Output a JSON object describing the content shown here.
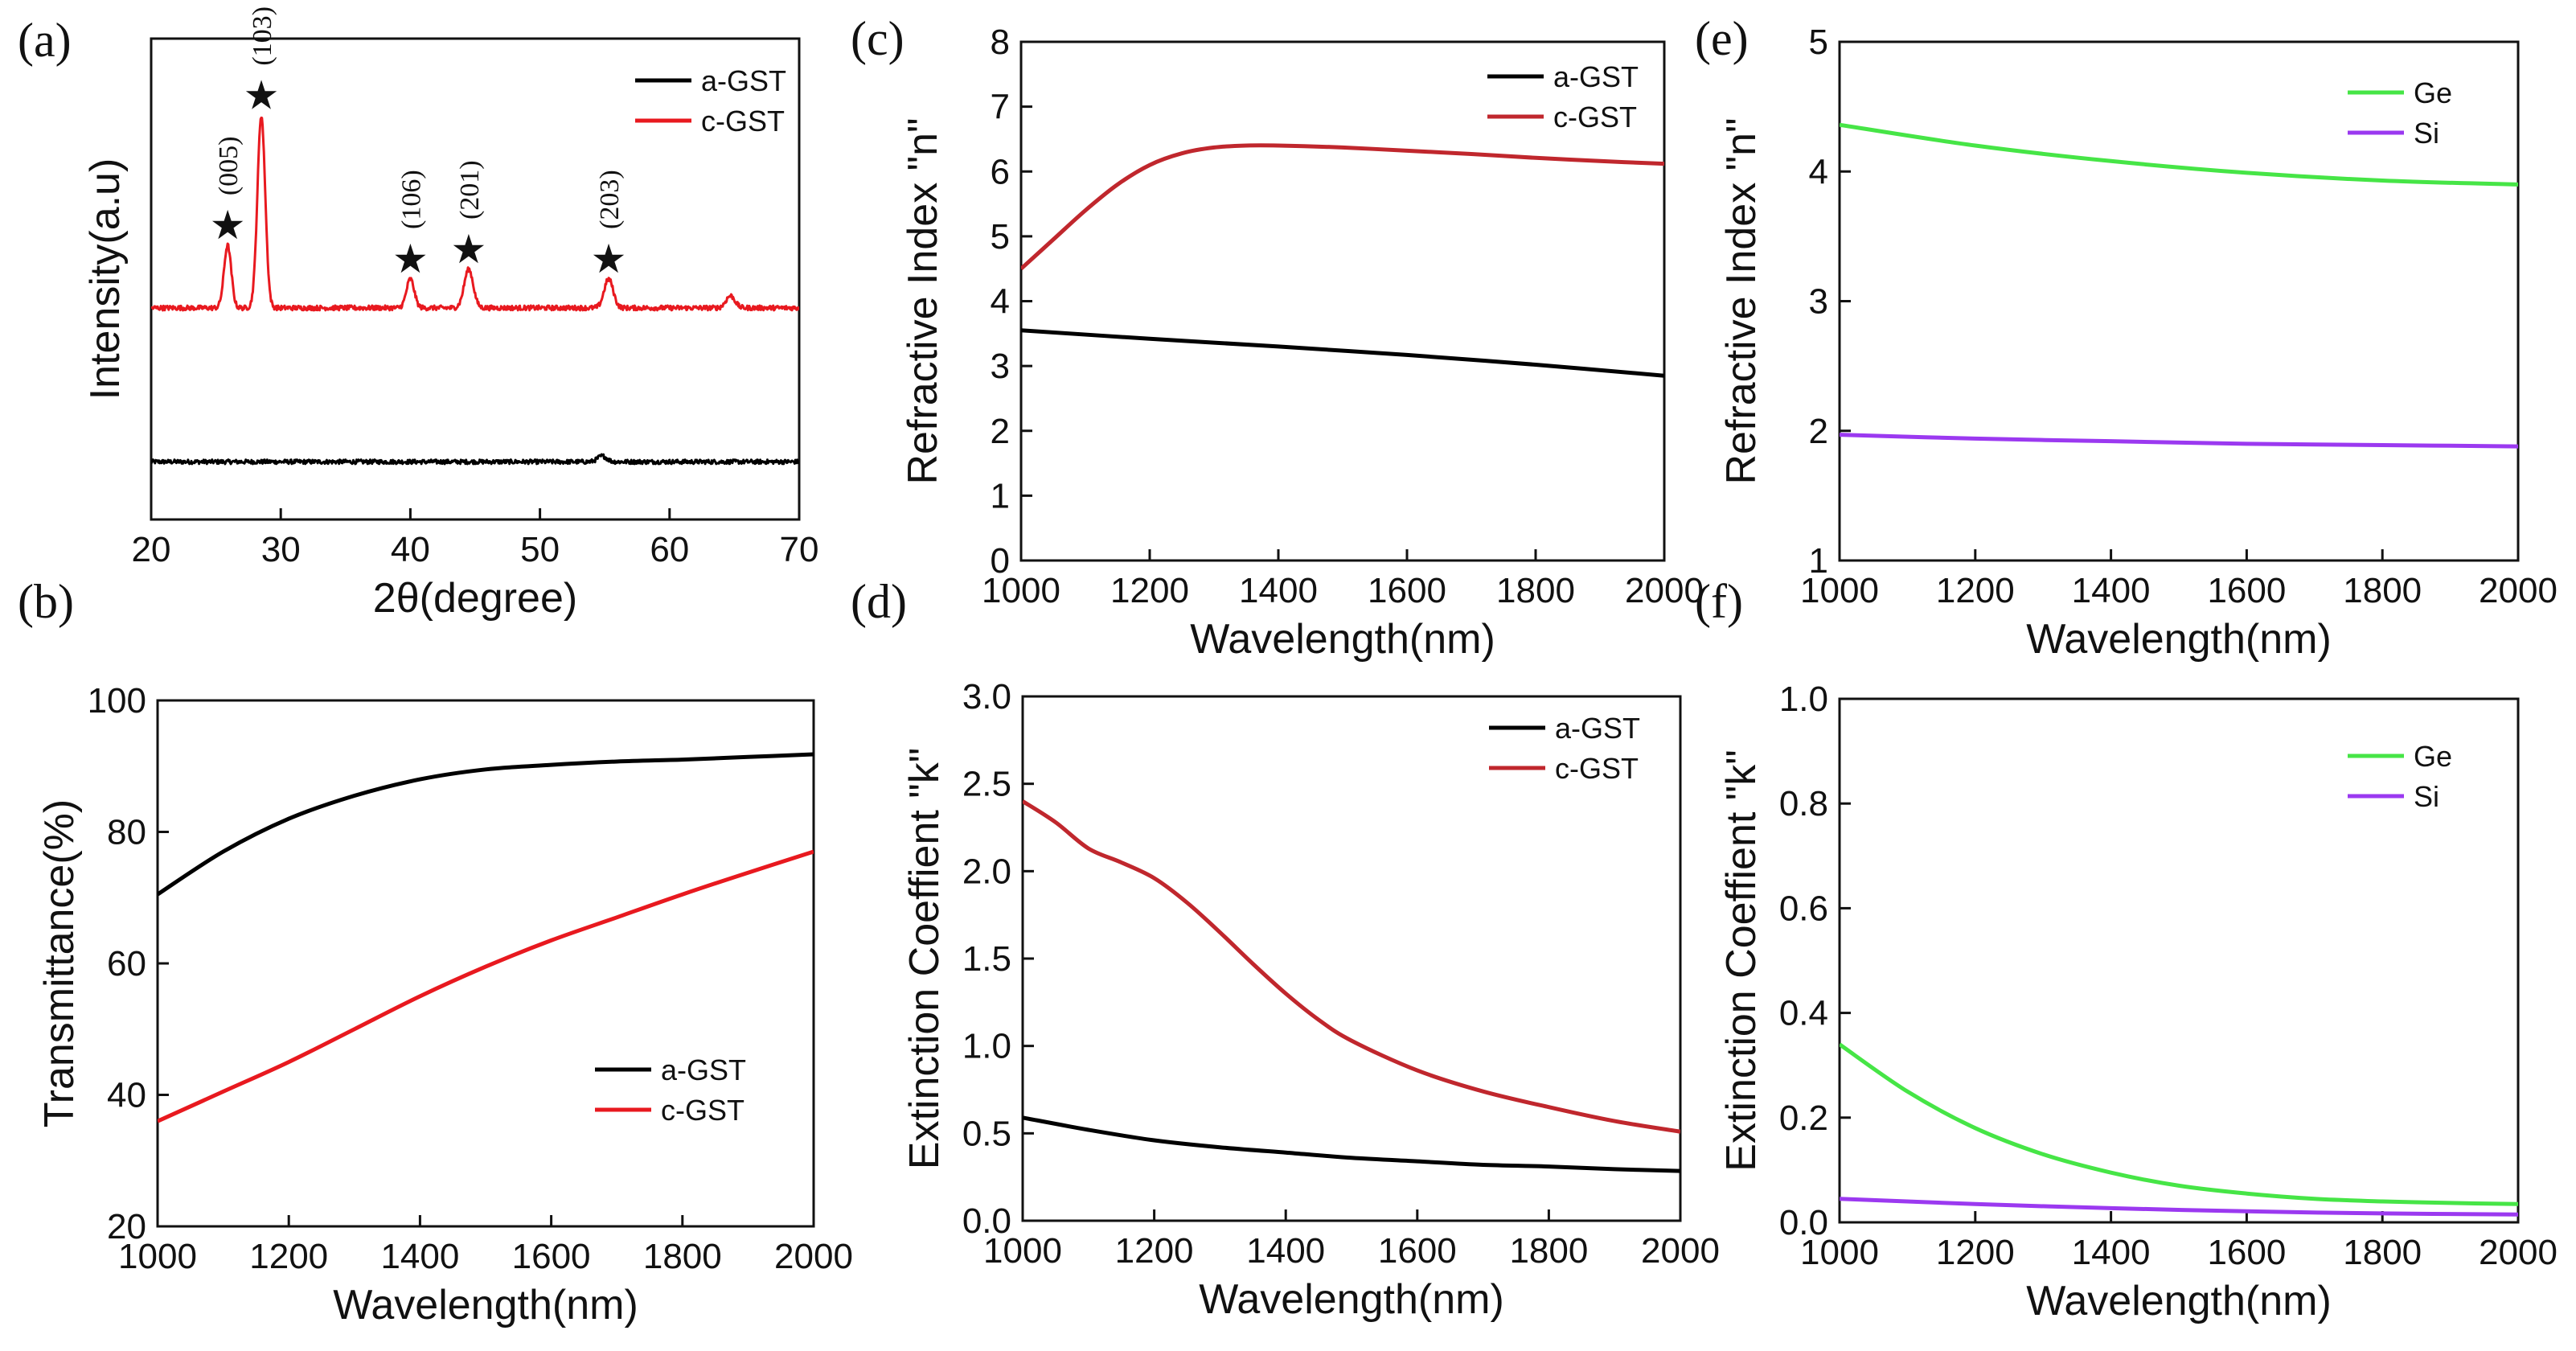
{
  "figure": {
    "chart_data": [
      {
        "id": "a",
        "panel_label": "(a)",
        "type": "line",
        "title": "",
        "xlabel": "2θ(degree)",
        "ylabel": "Intensity(a.u)",
        "xlim": [
          20,
          70
        ],
        "ylim": [
          0,
          100
        ],
        "xticks": [
          20,
          30,
          40,
          50,
          60,
          70
        ],
        "yticks": [],
        "grid": false,
        "legend_position": "top-right",
        "series": [
          {
            "name": "a-GST",
            "color": "#000000",
            "baseline": 12,
            "noise": 0.45,
            "peaks": [
              {
                "x": 54.8,
                "h": 1.2,
                "w": 0.35
              }
            ]
          },
          {
            "name": "c-GST",
            "color": "#e8191f",
            "baseline": 44,
            "noise": 0.5,
            "peaks": [
              {
                "x": 25.9,
                "h": 13,
                "w": 0.28
              },
              {
                "x": 28.5,
                "h": 40,
                "w": 0.3
              },
              {
                "x": 40.0,
                "h": 6,
                "w": 0.3
              },
              {
                "x": 44.5,
                "h": 8,
                "w": 0.35
              },
              {
                "x": 55.3,
                "h": 6,
                "w": 0.35
              },
              {
                "x": 64.7,
                "h": 2.5,
                "w": 0.35
              }
            ]
          }
        ],
        "annotations": [
          {
            "label": "(005)",
            "x": 25.9
          },
          {
            "label": "(103)",
            "x": 28.5
          },
          {
            "label": "(106)",
            "x": 40.0
          },
          {
            "label": "(201)",
            "x": 44.5
          },
          {
            "label": "(203)",
            "x": 55.3
          }
        ]
      },
      {
        "id": "b",
        "panel_label": "(b)",
        "type": "line",
        "title": "",
        "xlabel": "Wavelength(nm)",
        "ylabel": "Transmittance(%)",
        "xlim": [
          1000,
          2000
        ],
        "ylim": [
          20,
          100
        ],
        "xticks": [
          1000,
          1200,
          1400,
          1600,
          1800,
          2000
        ],
        "yticks": [
          20,
          40,
          60,
          80,
          100
        ],
        "grid": false,
        "legend_position": "bottom-right",
        "series": [
          {
            "name": "a-GST",
            "color": "#000000",
            "x": [
              1000,
              1100,
              1200,
              1300,
              1400,
              1500,
              1600,
              1700,
              1800,
              1900,
              2000
            ],
            "y": [
              70.5,
              77,
              82,
              85.5,
              88,
              89.5,
              90.2,
              90.7,
              91,
              91.4,
              91.8
            ]
          },
          {
            "name": "c-GST",
            "color": "#e8191f",
            "x": [
              1000,
              1100,
              1200,
              1300,
              1400,
              1500,
              1600,
              1700,
              1800,
              1900,
              2000
            ],
            "y": [
              36,
              40.5,
              45,
              50,
              55,
              59.5,
              63.5,
              67,
              70.5,
              73.8,
              77
            ]
          }
        ]
      },
      {
        "id": "c",
        "panel_label": "(c)",
        "type": "line",
        "title": "",
        "xlabel": "Wavelength(nm)",
        "ylabel": "Refractive Index \"n\"",
        "xlim": [
          1000,
          2000
        ],
        "ylim": [
          0,
          8
        ],
        "xticks": [
          1000,
          1200,
          1400,
          1600,
          1800,
          2000
        ],
        "yticks": [
          0,
          1,
          2,
          3,
          4,
          5,
          6,
          7,
          8
        ],
        "grid": false,
        "legend_position": "top-right",
        "series": [
          {
            "name": "a-GST",
            "color": "#000000",
            "x": [
              1000,
              1200,
              1400,
              1600,
              1800,
              2000
            ],
            "y": [
              3.55,
              3.42,
              3.3,
              3.17,
              3.02,
              2.85
            ]
          },
          {
            "name": "c-GST",
            "color": "#c0272d",
            "x": [
              1000,
              1050,
              1100,
              1150,
              1200,
              1250,
              1300,
              1350,
              1400,
              1500,
              1600,
              1700,
              1800,
              1900,
              2000
            ],
            "y": [
              4.5,
              4.95,
              5.4,
              5.8,
              6.1,
              6.28,
              6.37,
              6.4,
              6.4,
              6.37,
              6.32,
              6.27,
              6.21,
              6.16,
              6.12
            ]
          }
        ]
      },
      {
        "id": "d",
        "panel_label": "(d)",
        "type": "line",
        "title": "",
        "xlabel": "Wavelength(nm)",
        "ylabel": "Extinction Coeffient \"k\"",
        "xlim": [
          1000,
          2000
        ],
        "ylim": [
          0,
          3.0
        ],
        "xticks": [
          1000,
          1200,
          1400,
          1600,
          1800,
          2000
        ],
        "yticks": [
          0.0,
          0.5,
          1.0,
          1.5,
          2.0,
          2.5,
          3.0
        ],
        "grid": false,
        "legend_position": "top-right",
        "series": [
          {
            "name": "a-GST",
            "color": "#000000",
            "x": [
              1000,
              1100,
              1200,
              1300,
              1400,
              1500,
              1600,
              1700,
              1800,
              1900,
              2000
            ],
            "y": [
              0.59,
              0.52,
              0.46,
              0.42,
              0.39,
              0.36,
              0.34,
              0.32,
              0.31,
              0.295,
              0.285
            ]
          },
          {
            "name": "c-GST",
            "color": "#c0272d",
            "x": [
              1000,
              1050,
              1100,
              1150,
              1200,
              1250,
              1300,
              1350,
              1400,
              1450,
              1500,
              1600,
              1700,
              1800,
              1900,
              2000
            ],
            "y": [
              2.4,
              2.28,
              2.13,
              2.05,
              1.96,
              1.82,
              1.65,
              1.47,
              1.3,
              1.15,
              1.03,
              0.86,
              0.74,
              0.65,
              0.57,
              0.51
            ]
          }
        ]
      },
      {
        "id": "e",
        "panel_label": "(e)",
        "type": "line",
        "title": "",
        "xlabel": "Wavelength(nm)",
        "ylabel": "Refractive Index \"n\"",
        "xlim": [
          1000,
          2000
        ],
        "ylim": [
          1,
          5
        ],
        "xticks": [
          1000,
          1200,
          1400,
          1600,
          1800,
          2000
        ],
        "yticks": [
          1,
          2,
          3,
          4,
          5
        ],
        "grid": false,
        "legend_position": "top-right",
        "series": [
          {
            "name": "Ge",
            "color": "#46e546",
            "x": [
              1000,
              1200,
              1400,
              1600,
              1800,
              2000
            ],
            "y": [
              4.36,
              4.2,
              4.08,
              3.99,
              3.93,
              3.9
            ]
          },
          {
            "name": "Si",
            "color": "#9b39f0",
            "x": [
              1000,
              1200,
              1400,
              1600,
              1800,
              2000
            ],
            "y": [
              1.97,
              1.94,
              1.92,
              1.9,
              1.89,
              1.88
            ]
          }
        ]
      },
      {
        "id": "f",
        "panel_label": "(f)",
        "type": "line",
        "title": "",
        "xlabel": "Wavelength(nm)",
        "ylabel": "Extinction Coeffient \"k\"",
        "xlim": [
          1000,
          2000
        ],
        "ylim": [
          0,
          1.0
        ],
        "xticks": [
          1000,
          1200,
          1400,
          1600,
          1800,
          2000
        ],
        "yticks": [
          0.0,
          0.2,
          0.4,
          0.6,
          0.8,
          1.0
        ],
        "grid": false,
        "legend_position": "top-right",
        "series": [
          {
            "name": "Ge",
            "color": "#46e546",
            "x": [
              1000,
              1100,
              1200,
              1300,
              1400,
              1500,
              1600,
              1700,
              1800,
              1900,
              2000
            ],
            "y": [
              0.34,
              0.25,
              0.18,
              0.13,
              0.095,
              0.07,
              0.055,
              0.045,
              0.04,
              0.037,
              0.035
            ]
          },
          {
            "name": "Si",
            "color": "#9b39f0",
            "x": [
              1000,
              1200,
              1400,
              1600,
              1800,
              2000
            ],
            "y": [
              0.045,
              0.035,
              0.027,
              0.021,
              0.017,
              0.015
            ]
          }
        ]
      }
    ]
  }
}
